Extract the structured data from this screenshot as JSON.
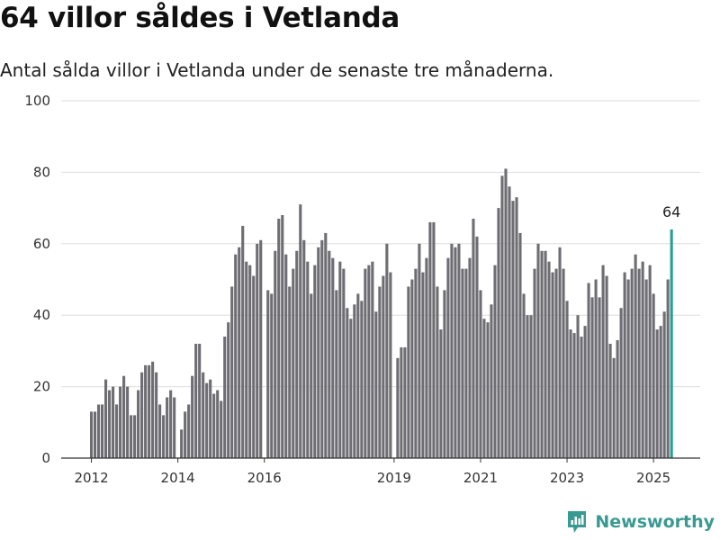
{
  "title": "64 villor såldes i Vetlanda",
  "subtitle": "Antal sålda villor i Vetlanda under de senaste tre månaderna.",
  "brand": {
    "name": "Newsworthy",
    "icon": "bar-chart-logo-icon",
    "color": "#3a9a92"
  },
  "colors": {
    "bar": "#6e6d73",
    "highlight": "#2a9d96",
    "grid": "#dddddd"
  },
  "chart_data": {
    "type": "bar",
    "title": "64 villor såldes i Vetlanda",
    "subtitle": "Antal sålda villor i Vetlanda under de senaste tre månaderna.",
    "xlabel": "",
    "ylabel": "",
    "ylim": [
      0,
      100
    ],
    "yticks": [
      0,
      20,
      40,
      60,
      80,
      100
    ],
    "xticks": [
      {
        "label": "2012",
        "index": 0
      },
      {
        "label": "2014",
        "index": 24
      },
      {
        "label": "2016",
        "index": 48
      },
      {
        "label": "2019",
        "index": 84
      },
      {
        "label": "2021",
        "index": 108
      },
      {
        "label": "2023",
        "index": 132
      },
      {
        "label": "2025",
        "index": 156
      }
    ],
    "grid": true,
    "highlight_last": true,
    "last_label": "64",
    "start_period": "2012-01",
    "frequency": "monthly (rolling three-month totals)",
    "values": [
      13,
      13,
      15,
      15,
      22,
      19,
      20,
      15,
      20,
      23,
      20,
      12,
      12,
      19,
      24,
      26,
      26,
      27,
      24,
      15,
      12,
      17,
      19,
      17,
      null,
      8,
      13,
      15,
      23,
      32,
      32,
      24,
      21,
      22,
      18,
      19,
      16,
      34,
      38,
      48,
      57,
      59,
      65,
      55,
      54,
      51,
      60,
      61,
      null,
      47,
      46,
      58,
      67,
      68,
      57,
      48,
      53,
      58,
      71,
      61,
      55,
      46,
      54,
      59,
      61,
      63,
      58,
      56,
      47,
      55,
      53,
      42,
      39,
      43,
      46,
      44,
      53,
      54,
      55,
      41,
      48,
      51,
      60,
      52,
      null,
      28,
      31,
      31,
      48,
      50,
      53,
      60,
      52,
      56,
      66,
      66,
      48,
      36,
      47,
      56,
      60,
      59,
      60,
      53,
      53,
      56,
      67,
      62,
      47,
      39,
      38,
      43,
      54,
      70,
      79,
      81,
      76,
      72,
      73,
      63,
      46,
      40,
      40,
      53,
      60,
      58,
      58,
      55,
      52,
      53,
      59,
      53,
      44,
      36,
      35,
      40,
      34,
      37,
      49,
      45,
      50,
      45,
      54,
      51,
      32,
      28,
      33,
      42,
      52,
      50,
      53,
      57,
      53,
      55,
      50,
      54,
      46,
      36,
      37,
      41,
      50,
      64
    ]
  }
}
